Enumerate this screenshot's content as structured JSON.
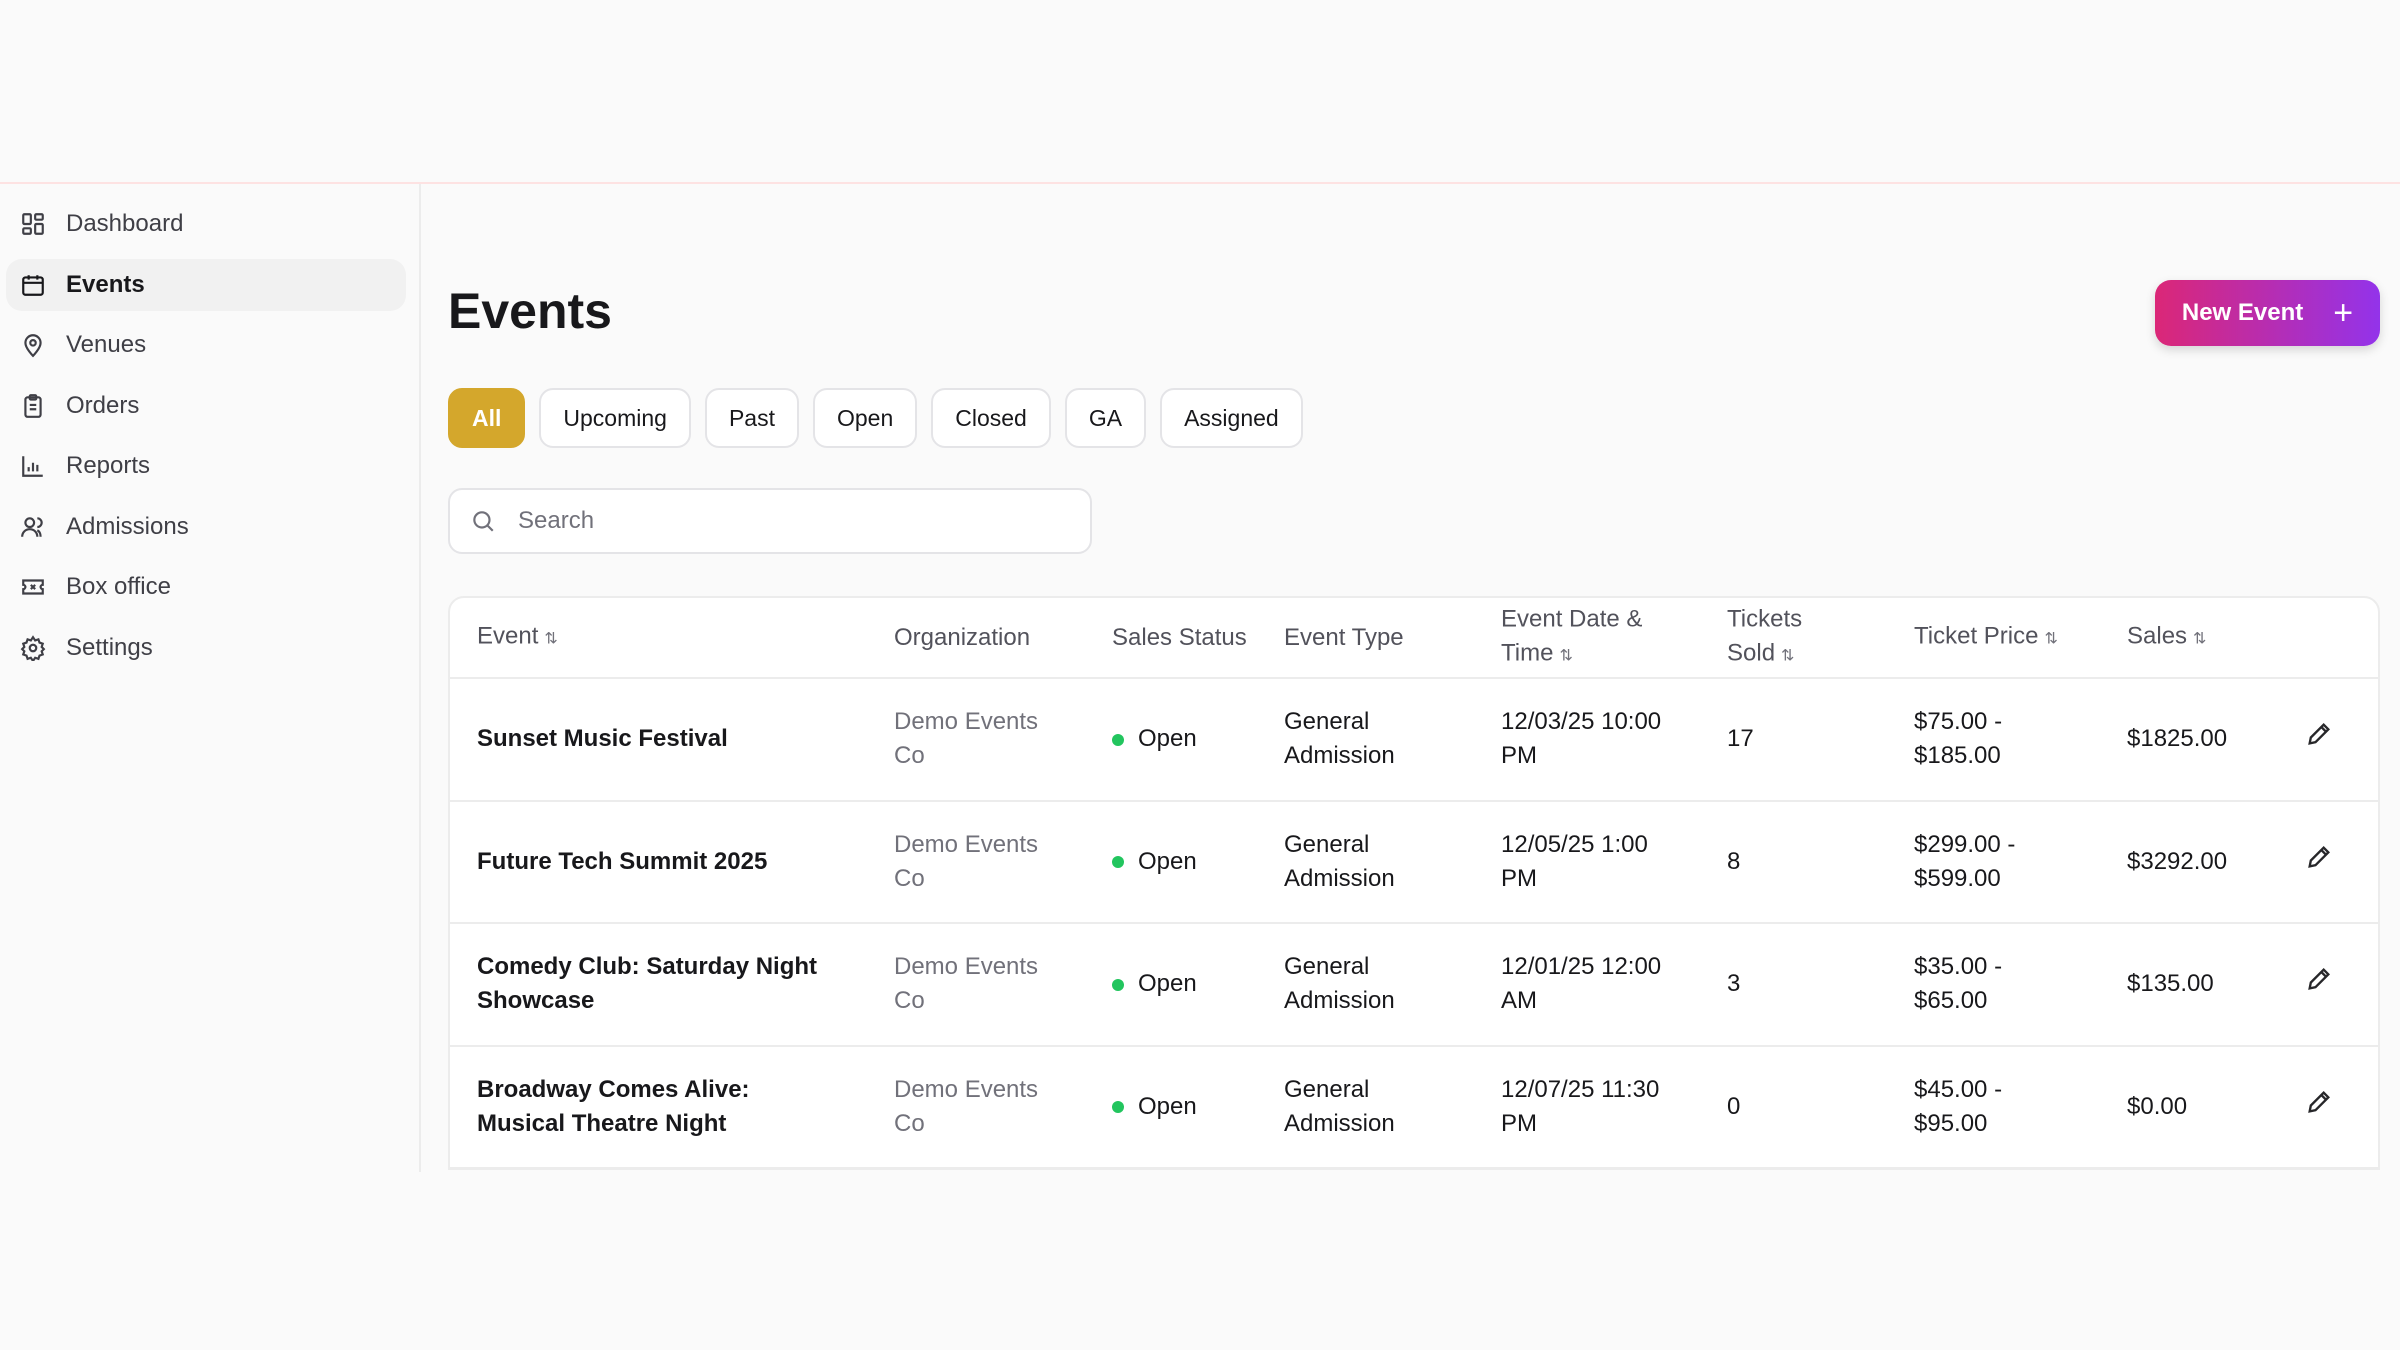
{
  "sidebar": {
    "items": [
      {
        "label": "Dashboard",
        "icon": "dashboard-icon"
      },
      {
        "label": "Events",
        "icon": "calendar-icon",
        "active": true
      },
      {
        "label": "Venues",
        "icon": "map-pin-icon"
      },
      {
        "label": "Orders",
        "icon": "clipboard-icon"
      },
      {
        "label": "Reports",
        "icon": "bar-chart-icon"
      },
      {
        "label": "Admissions",
        "icon": "users-icon"
      },
      {
        "label": "Box office",
        "icon": "ticket-icon"
      },
      {
        "label": "Settings",
        "icon": "gear-icon"
      }
    ]
  },
  "page": {
    "title": "Events",
    "new_button": "New Event",
    "new_icon": "+"
  },
  "filters": [
    "All",
    "Upcoming",
    "Past",
    "Open",
    "Closed",
    "GA",
    "Assigned"
  ],
  "active_filter": "All",
  "search": {
    "placeholder": "Search",
    "value": ""
  },
  "table": {
    "headers": [
      "Event",
      "Organization",
      "Sales Status",
      "Event Type",
      "Event Date & Time",
      "Tickets Sold",
      "Ticket Price",
      "Sales"
    ],
    "rows": [
      {
        "event": "Sunset Music Festival",
        "org": "Demo Events Co",
        "status": "Open",
        "type": "General Admission",
        "date": "12/03/25 10:00 PM",
        "sold": "17",
        "price": "$75.00 - $185.00",
        "sales": "$1825.00"
      },
      {
        "event": "Future Tech Summit 2025",
        "org": "Demo Events Co",
        "status": "Open",
        "type": "General Admission",
        "date": "12/05/25 1:00 PM",
        "sold": "8",
        "price": "$299.00 - $599.00",
        "sales": "$3292.00"
      },
      {
        "event": "Comedy Club: Saturday Night Showcase",
        "org": "Demo Events Co",
        "status": "Open",
        "type": "General Admission",
        "date": "12/01/25 12:00 AM",
        "sold": "3",
        "price": "$35.00 - $65.00",
        "sales": "$135.00"
      },
      {
        "event": "Broadway Comes Alive: Musical Theatre Night",
        "org": "Demo Events Co",
        "status": "Open",
        "type": "General Admission",
        "date": "12/07/25 11:30 PM",
        "sold": "0",
        "price": "$45.00 - $95.00",
        "sales": "$0.00"
      }
    ]
  },
  "colors": {
    "accent_filter": "#d4a72c",
    "button_gradient_start": "#db2777",
    "button_gradient_end": "#9333ea",
    "status_open": "#22c55e"
  }
}
